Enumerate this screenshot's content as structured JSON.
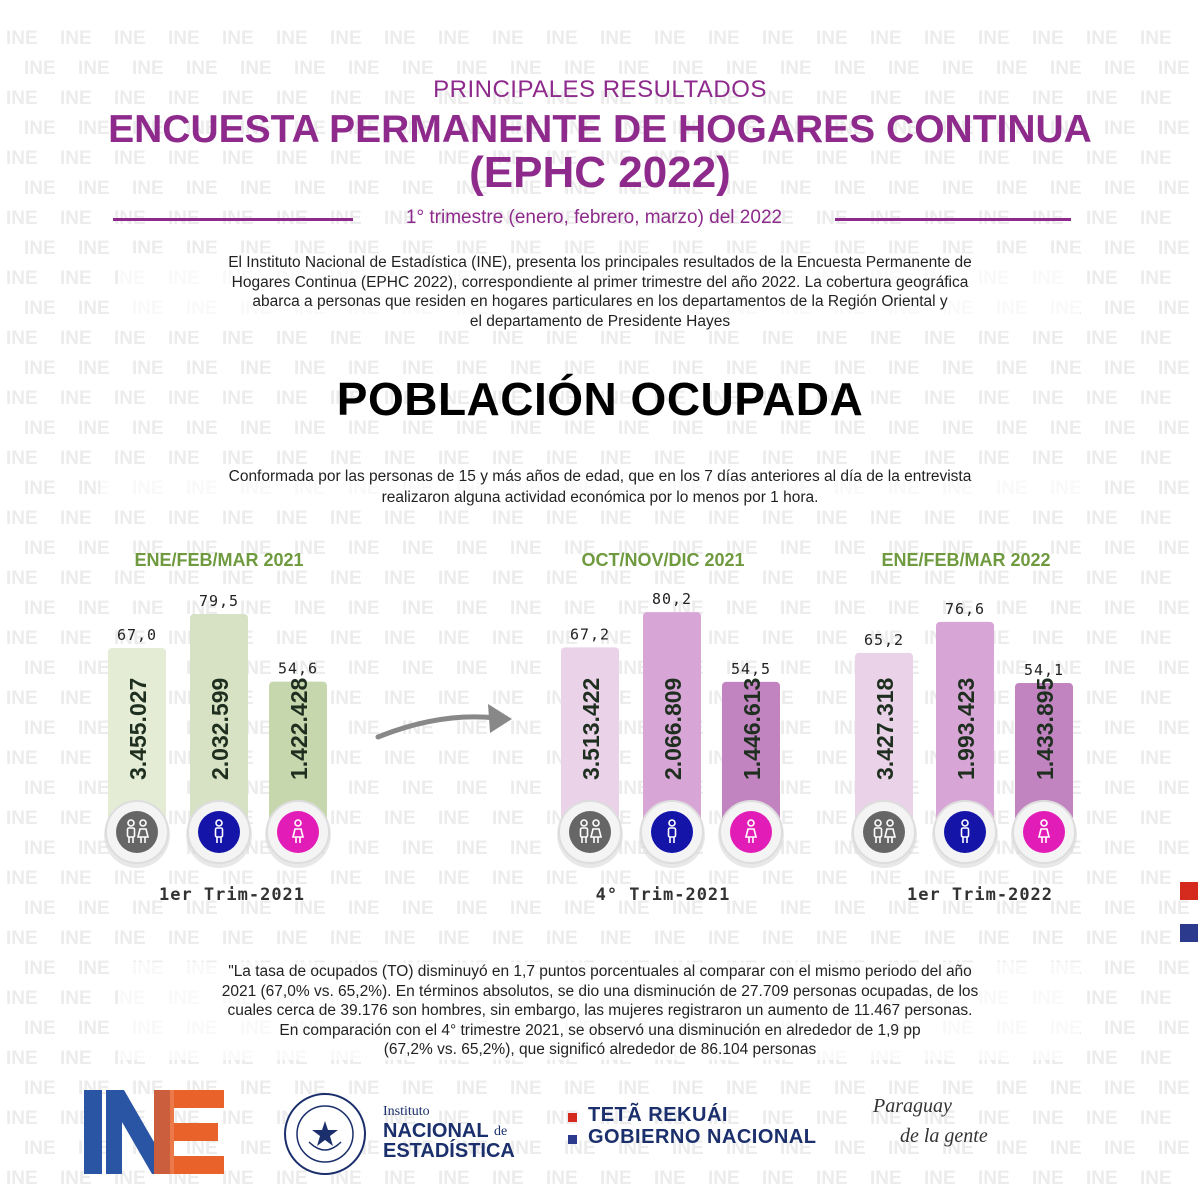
{
  "watermark_text": "INE",
  "header": {
    "subtitle": "PRINCIPALES RESULTADOS",
    "title_line1": "ENCUESTA PERMANENTE DE HOGARES CONTINUA",
    "title_line2": "(EPHC 2022)",
    "period": "1° trimestre (enero, febrero, marzo) del 2022"
  },
  "intro": [
    "El Instituto Nacional de Estadística (INE), presenta los principales resultados de la Encuesta Permanente de",
    "Hogares Continua (EPHC 2022), correspondiente al primer trimestre del año 2022.  La cobertura geográfica",
    "abarca a personas que residen en hogares particulares en los departamentos de la Región Oriental y",
    "el departamento de Presidente Hayes"
  ],
  "section_title": "POBLACIÓN OCUPADA",
  "definition": [
    "Conformada por las personas de 15 y más años de edad, que en los 7 días anteriores al día de la entrevista",
    "realizaron alguna actividad económica por lo menos por 1 hora."
  ],
  "chart_data": [
    {
      "type": "bar",
      "title": "ENE/FEB/MAR 2021",
      "footer": "1er Trim-2021",
      "categories": [
        "total",
        "hombres",
        "mujeres"
      ],
      "rates": [
        "67,0",
        "79,5",
        "54,6"
      ],
      "rate_values": [
        67.0,
        79.5,
        54.6
      ],
      "counts": [
        "3.455.027",
        "2.032.599",
        "1.422.428"
      ],
      "count_values": [
        3455027,
        2032599,
        1422428
      ],
      "colors": [
        "#e4ecd6",
        "#d6e2c3",
        "#c7d7ad"
      ]
    },
    {
      "type": "bar",
      "title": "OCT/NOV/DIC 2021",
      "footer": "4° Trim-2021",
      "categories": [
        "total",
        "hombres",
        "mujeres"
      ],
      "rates": [
        "67,2",
        "80,2",
        "54,5"
      ],
      "rate_values": [
        67.2,
        80.2,
        54.5
      ],
      "counts": [
        "3.513.422",
        "2.066.809",
        "1.446.613"
      ],
      "count_values": [
        3513422,
        2066809,
        1446613
      ],
      "colors": [
        "#ead2e9",
        "#d7a6d6",
        "#c184c1"
      ]
    },
    {
      "type": "bar",
      "title": "ENE/FEB/MAR 2022",
      "footer": "1er Trim-2022",
      "categories": [
        "total",
        "hombres",
        "mujeres"
      ],
      "rates": [
        "65,2",
        "76,6",
        "54,1"
      ],
      "rate_values": [
        65.2,
        76.6,
        54.1
      ],
      "counts": [
        "3.427.318",
        "1.993.423",
        "1.433.895"
      ],
      "count_values": [
        3427318,
        1993423,
        1433895
      ],
      "colors": [
        "#ead2e9",
        "#d7a6d6",
        "#c184c1"
      ]
    }
  ],
  "chart_style": {
    "title_color": "#6f9a3f",
    "label_color": "#222222",
    "count_color": "#1f2f1f",
    "icon_colors": [
      "#666666",
      "#1414a8",
      "#e21db7"
    ],
    "arrow_color": "#888888"
  },
  "icons": [
    "people-icon",
    "man-icon",
    "woman-icon",
    "arrow-right-icon"
  ],
  "quote": [
    "\"La tasa de ocupados (TO) disminuyó en 1,7 puntos porcentuales al comparar con el mismo periodo del año",
    "2021 (67,0% vs. 65,2%).  En términos absolutos, se dio una disminución de 27.709 personas ocupadas, de los",
    "cuales cerca de 39.176  son hombres, sin embargo, las mujeres registraron un aumento de 11.467 personas.",
    "En comparación con el 4° trimestre 2021, se observó una disminución en alrededor de 1,9 pp",
    "(67,2% vs. 65,2%), que significó alrededor de 86.104 personas"
  ],
  "footer": {
    "logo_text": "INE",
    "seal_text": "REPÚBLICA DEL PARAGUAY",
    "institute_small": "Instituto",
    "institute_line1": "NACIONAL",
    "institute_de": "de",
    "institute_line2": "ESTADÍSTICA",
    "gov_line1": "TETÃ REKUÁI",
    "gov_line2": "GOBIERNO NACIONAL",
    "slogan_line1": "Paraguay",
    "slogan_line2": "de la gente",
    "colors": {
      "ine_blue": "#2a55a5",
      "ine_orange": "#e8622a",
      "navy": "#1a2f6b",
      "flag_red": "#d52b1e",
      "flag_blue": "#2b3a8c"
    }
  }
}
